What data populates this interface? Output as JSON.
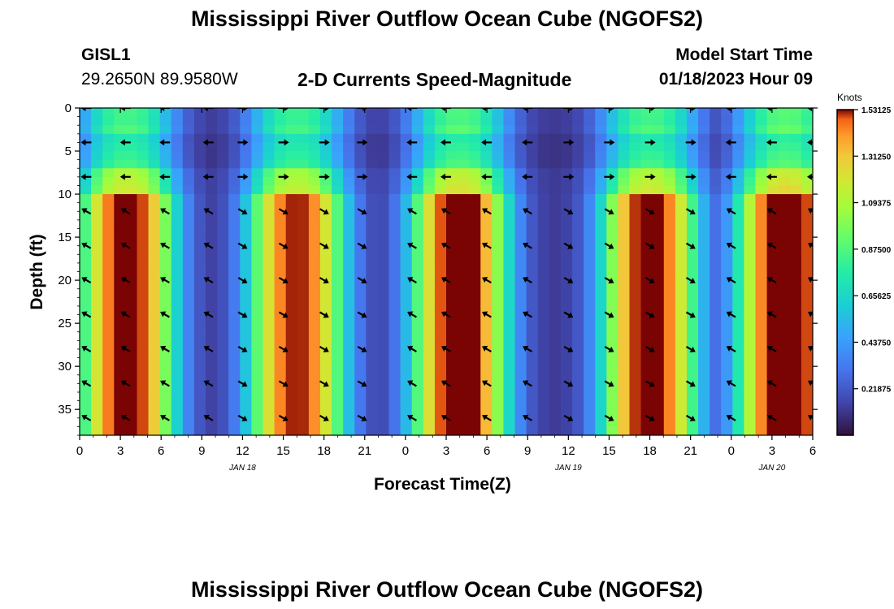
{
  "titles": {
    "main": "Mississippi River Outflow Ocean Cube (NGOFS2)",
    "bottom": "Mississippi River Outflow Ocean Cube (NGOFS2)"
  },
  "header": {
    "station": "GISL1",
    "coords": "29.2650N  89.9580W",
    "plot_title": "2-D Currents Speed-Magnitude",
    "model_label": "Model Start Time",
    "model_time": "01/18/2023 Hour 09"
  },
  "chart_data": {
    "type": "heatmap",
    "title": "2-D Currents Speed-Magnitude",
    "xlabel": "Forecast Time(Z)",
    "ylabel": "Depth (ft)",
    "x_ticks": [
      "0",
      "3",
      "6",
      "9",
      "12",
      "15",
      "18",
      "21",
      "0",
      "3",
      "6",
      "9",
      "12",
      "15",
      "18",
      "21",
      "0",
      "3",
      "6"
    ],
    "x_hours": [
      0,
      3,
      6,
      9,
      12,
      15,
      18,
      21,
      24,
      27,
      30,
      33,
      36,
      39,
      42,
      45,
      48,
      51,
      54
    ],
    "date_labels": [
      {
        "label": "JAN 18",
        "hour": 12
      },
      {
        "label": "JAN 19",
        "hour": 36
      },
      {
        "label": "JAN 20",
        "hour": 51
      }
    ],
    "y_ticks": [
      "0",
      "5",
      "10",
      "15",
      "20",
      "25",
      "30",
      "35"
    ],
    "y_values": [
      0,
      5,
      10,
      15,
      20,
      25,
      30,
      35
    ],
    "ylim": [
      0,
      38
    ],
    "xlim": [
      0,
      54
    ],
    "colorbar": {
      "unit": "Knots",
      "min": 0,
      "max": 1.53125,
      "tick_labels": [
        "1.53125",
        "1.31250",
        "1.09375",
        "0.87500",
        "0.65625",
        "0.43750",
        "0.21875"
      ],
      "tick_values": [
        1.53125,
        1.3125,
        1.09375,
        0.875,
        0.65625,
        0.4375,
        0.21875
      ]
    },
    "speed_peaks_kn": [
      1.45,
      1.4,
      1.5,
      1.45,
      1.55
    ],
    "speed_peak_hours": [
      3.5,
      16,
      28,
      42,
      52
    ],
    "speed_minimum_hours": [
      9.5,
      21.5,
      36,
      48
    ],
    "arrow_hours": [
      0.5,
      3.4,
      6.3,
      9.5,
      12,
      15,
      18,
      20.8,
      24.5,
      27,
      30,
      33,
      36,
      39,
      42,
      45,
      48,
      51,
      54
    ],
    "arrow_depths_ft": [
      0,
      4,
      8,
      12,
      16,
      20,
      24,
      28,
      32,
      36
    ]
  }
}
